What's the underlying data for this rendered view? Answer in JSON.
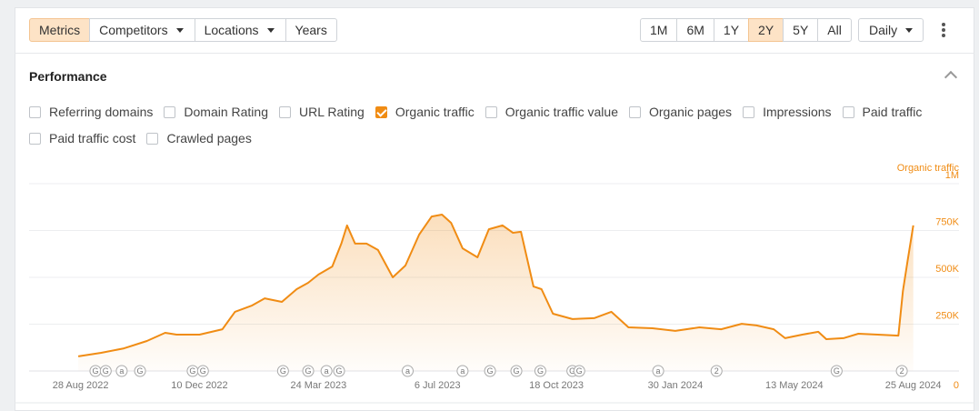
{
  "toolbar": {
    "tabs": [
      {
        "label": "Metrics",
        "active": true,
        "dropdown": false
      },
      {
        "label": "Competitors",
        "active": false,
        "dropdown": true
      },
      {
        "label": "Locations",
        "active": false,
        "dropdown": true
      },
      {
        "label": "Years",
        "active": false,
        "dropdown": false
      }
    ],
    "ranges": [
      {
        "label": "1M",
        "active": false
      },
      {
        "label": "6M",
        "active": false
      },
      {
        "label": "1Y",
        "active": false
      },
      {
        "label": "2Y",
        "active": true
      },
      {
        "label": "5Y",
        "active": false
      },
      {
        "label": "All",
        "active": false
      }
    ],
    "interval": "Daily"
  },
  "panel": {
    "title": "Performance",
    "metrics": [
      {
        "label": "Referring domains",
        "checked": false
      },
      {
        "label": "Domain Rating",
        "checked": false
      },
      {
        "label": "URL Rating",
        "checked": false
      },
      {
        "label": "Organic traffic",
        "checked": true
      },
      {
        "label": "Organic traffic value",
        "checked": false
      },
      {
        "label": "Organic pages",
        "checked": false
      },
      {
        "label": "Impressions",
        "checked": false
      },
      {
        "label": "Paid traffic",
        "checked": false
      },
      {
        "label": "Paid traffic cost",
        "checked": false
      },
      {
        "label": "Crawled pages",
        "checked": false
      }
    ]
  },
  "chart_data": {
    "type": "area",
    "grid": true,
    "x": [
      "2022-08-26",
      "2022-09-15",
      "2022-10-05",
      "2022-10-25",
      "2022-11-10",
      "2022-11-20",
      "2022-12-10",
      "2022-12-30",
      "2023-01-10",
      "2023-01-25",
      "2023-02-05",
      "2023-02-20",
      "2023-03-05",
      "2023-03-15",
      "2023-03-24",
      "2023-04-05",
      "2023-04-13",
      "2023-04-18",
      "2023-04-25",
      "2023-05-05",
      "2023-05-15",
      "2023-05-28",
      "2023-06-08",
      "2023-06-20",
      "2023-07-01",
      "2023-07-10",
      "2023-07-18",
      "2023-07-28",
      "2023-08-10",
      "2023-08-20",
      "2023-09-01",
      "2023-09-10",
      "2023-09-17",
      "2023-09-28",
      "2023-10-05",
      "2023-10-15",
      "2023-11-01",
      "2023-11-20",
      "2023-12-05",
      "2023-12-20",
      "2024-01-10",
      "2024-01-30",
      "2024-02-20",
      "2024-03-10",
      "2024-03-28",
      "2024-04-10",
      "2024-04-25",
      "2024-05-05",
      "2024-05-20",
      "2024-06-03",
      "2024-06-10",
      "2024-06-25",
      "2024-07-08",
      "2024-07-25",
      "2024-08-12",
      "2024-08-16",
      "2024-08-20",
      "2024-08-25"
    ],
    "series": [
      {
        "name": "Organic traffic",
        "color": "#f08c14",
        "values": [
          78000,
          97000,
          121000,
          160000,
          204000,
          194000,
          194000,
          223000,
          316000,
          350000,
          388000,
          369000,
          437000,
          471000,
          515000,
          558000,
          680000,
          777000,
          680000,
          680000,
          646000,
          500000,
          563000,
          728000,
          825000,
          835000,
          791000,
          655000,
          607000,
          757000,
          777000,
          738000,
          743000,
          451000,
          437000,
          306000,
          277000,
          282000,
          316000,
          233000,
          228000,
          214000,
          233000,
          223000,
          252000,
          243000,
          223000,
          175000,
          194000,
          209000,
          170000,
          175000,
          199000,
          194000,
          189000,
          427000,
          587000,
          777000
        ]
      }
    ],
    "xlim": [
      "2022-07-14",
      "2024-10-04"
    ],
    "xticks": [
      {
        "value": "2022-08-28",
        "label": "28 Aug 2022"
      },
      {
        "value": "2022-12-10",
        "label": "10 Dec 2022"
      },
      {
        "value": "2023-03-24",
        "label": "24 Mar 2023"
      },
      {
        "value": "2023-07-06",
        "label": "6 Jul 2023"
      },
      {
        "value": "2023-10-18",
        "label": "18 Oct 2023"
      },
      {
        "value": "2024-01-30",
        "label": "30 Jan 2024"
      },
      {
        "value": "2024-05-13",
        "label": "13 May 2024"
      },
      {
        "value": "2024-08-25",
        "label": "25 Aug 2024"
      }
    ],
    "ylim": [
      0,
      1000000
    ],
    "yticks": [
      0,
      {
        "value": 250000,
        "label": "250K"
      },
      {
        "value": 500000,
        "label": "500K"
      },
      {
        "value": 750000,
        "label": "750K"
      },
      {
        "value": 1000000,
        "label": "1M"
      }
    ],
    "events": [
      {
        "x": "2022-09-10",
        "label": "G"
      },
      {
        "x": "2022-09-19",
        "label": "G"
      },
      {
        "x": "2022-10-03",
        "label": "a"
      },
      {
        "x": "2022-10-19",
        "label": "G"
      },
      {
        "x": "2022-12-04",
        "label": "G"
      },
      {
        "x": "2022-12-13",
        "label": "G"
      },
      {
        "x": "2023-02-21",
        "label": "G"
      },
      {
        "x": "2023-03-15",
        "label": "G"
      },
      {
        "x": "2023-03-31",
        "label": "a"
      },
      {
        "x": "2023-04-11",
        "label": "G"
      },
      {
        "x": "2023-06-10",
        "label": "a"
      },
      {
        "x": "2023-07-28",
        "label": "a"
      },
      {
        "x": "2023-08-21",
        "label": "G"
      },
      {
        "x": "2023-09-13",
        "label": "G"
      },
      {
        "x": "2023-10-04",
        "label": "G"
      },
      {
        "x": "2023-11-01",
        "label": "G"
      },
      {
        "x": "2023-11-07",
        "label": "G"
      },
      {
        "x": "2024-01-15",
        "label": "a"
      },
      {
        "x": "2024-03-06",
        "label": "2"
      },
      {
        "x": "2024-06-19",
        "label": "G"
      },
      {
        "x": "2024-08-15",
        "label": "2"
      }
    ]
  }
}
